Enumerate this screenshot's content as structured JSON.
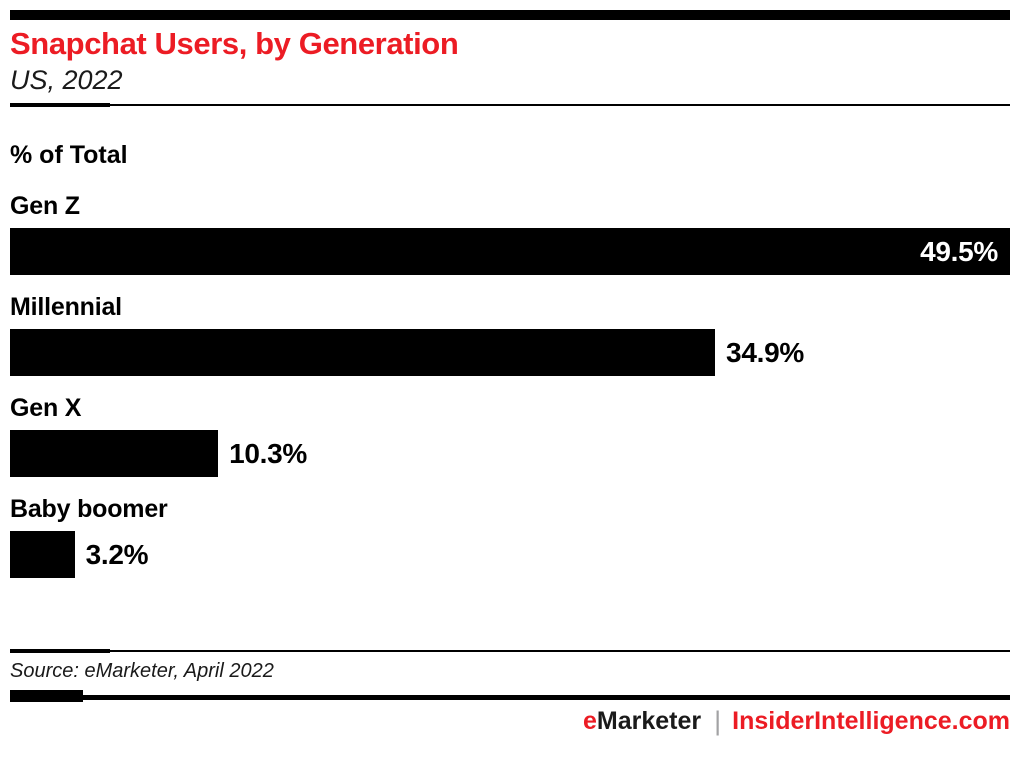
{
  "header": {
    "title": "Snapchat Users, by Generation",
    "subtitle": "US, 2022"
  },
  "chart_data": {
    "type": "bar",
    "orientation": "horizontal",
    "title": "Snapchat Users, by Generation",
    "subtitle": "US, 2022",
    "unit_label": "% of Total",
    "categories": [
      "Gen Z",
      "Millennial",
      "Gen X",
      "Baby boomer"
    ],
    "values": [
      49.5,
      34.9,
      10.3,
      3.2
    ],
    "value_labels": [
      "49.5%",
      "34.9%",
      "10.3%",
      "3.2%"
    ],
    "label_inside": [
      true,
      false,
      false,
      false
    ],
    "xlim": [
      0,
      49.5
    ],
    "bar_color": "#000000",
    "inside_label_color": "#ffffff",
    "outside_label_color": "#000000",
    "grid": false,
    "legend": false
  },
  "footer": {
    "source": "Source: eMarketer, April 2022",
    "brand_e": "e",
    "brand_rest": "Marketer",
    "separator": "|",
    "site": "InsiderIntelligence.com"
  },
  "colors": {
    "accent_red": "#ec1c24",
    "bar_black": "#000000",
    "pipe_gray": "#a2a2a4"
  }
}
